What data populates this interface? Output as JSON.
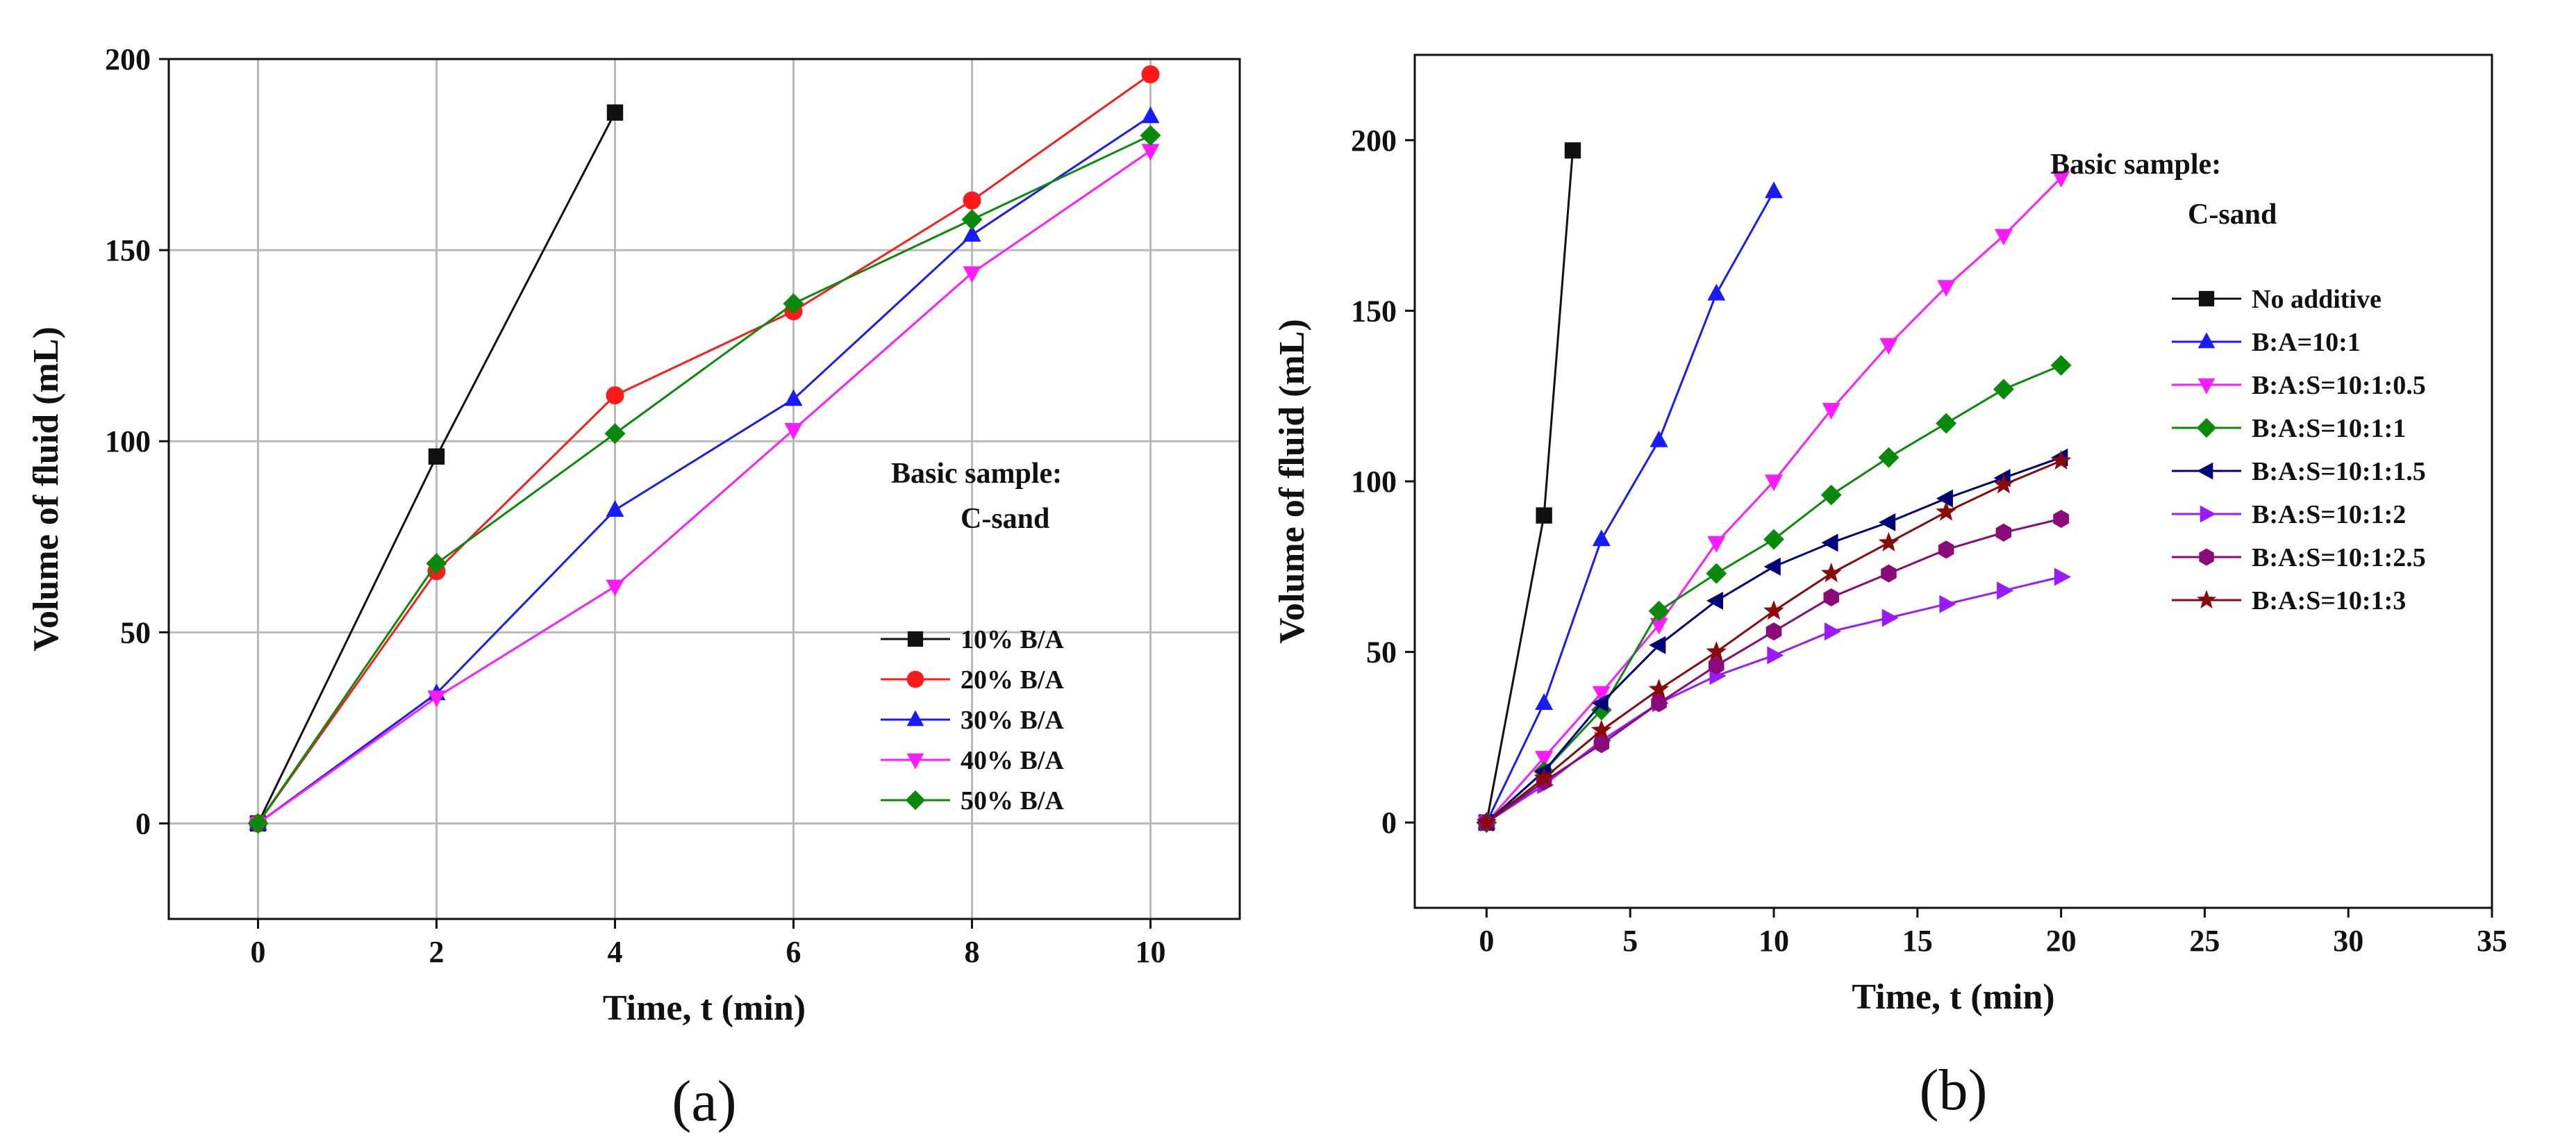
{
  "chart_data": [
    {
      "type": "line",
      "panel_label": "(a)",
      "title": "",
      "xlabel": "Time, t (min)",
      "ylabel": "Volume of fluid (mL)",
      "xlim": [
        -1,
        11
      ],
      "ylim": [
        -25,
        200
      ],
      "xticks": [
        0,
        2,
        4,
        6,
        8,
        10
      ],
      "yticks": [
        0,
        50,
        100,
        150,
        200
      ],
      "grid": true,
      "annotation": [
        "Basic sample:",
        "C-sand"
      ],
      "legend_position": "right",
      "series": [
        {
          "name": "10% B/A",
          "color": "#111111",
          "marker": "square",
          "x": [
            0,
            2,
            4
          ],
          "y": [
            0,
            96,
            186
          ]
        },
        {
          "name": "20% B/A",
          "color": "#ff1a1a",
          "marker": "circle",
          "x": [
            0,
            2,
            4,
            6,
            8,
            10
          ],
          "y": [
            0,
            66,
            112,
            134,
            163,
            196
          ]
        },
        {
          "name": "30% B/A",
          "color": "#1a1aff",
          "marker": "triangle-up",
          "x": [
            0,
            2,
            4,
            6,
            8,
            10
          ],
          "y": [
            0,
            34,
            82,
            111,
            154,
            185
          ]
        },
        {
          "name": "40% B/A",
          "color": "#ff1aff",
          "marker": "triangle-down",
          "x": [
            0,
            2,
            4,
            6,
            8,
            10
          ],
          "y": [
            0,
            33,
            62,
            103,
            144,
            176
          ]
        },
        {
          "name": "50% B/A",
          "color": "#0a8a0a",
          "marker": "diamond",
          "x": [
            0,
            2,
            4,
            6,
            8,
            10
          ],
          "y": [
            0,
            68,
            102,
            136,
            158,
            180
          ]
        }
      ]
    },
    {
      "type": "line",
      "panel_label": "(b)",
      "title": "",
      "xlabel": "Time, t (min)",
      "ylabel": "Volume of fluid (mL)",
      "xlim": [
        -2.5,
        35
      ],
      "ylim": [
        -25,
        225
      ],
      "xticks": [
        0,
        5,
        10,
        15,
        20,
        25,
        30,
        35
      ],
      "yticks": [
        0,
        50,
        100,
        150,
        200
      ],
      "grid": false,
      "annotation": [
        "Basic sample:",
        "C-sand"
      ],
      "legend_position": "right",
      "series": [
        {
          "name": "No additive",
          "color": "#111111",
          "marker": "square",
          "x": [
            0,
            2,
            3
          ],
          "y": [
            0,
            90,
            197
          ]
        },
        {
          "name": "B:A=10:1",
          "color": "#1a1aff",
          "marker": "triangle-up",
          "x": [
            0,
            2,
            4,
            6,
            8,
            10
          ],
          "y": [
            0,
            35,
            83,
            112,
            155,
            185
          ]
        },
        {
          "name": "B:A:S=10:1:0.5",
          "color": "#ff1aff",
          "marker": "triangle-down",
          "x": [
            0,
            2,
            4,
            6,
            8,
            10,
            12,
            14,
            16,
            18,
            20
          ],
          "y": [
            0,
            19,
            38,
            58,
            82,
            100,
            121,
            140,
            157,
            172,
            189
          ]
        },
        {
          "name": "B:A:S=10:1:1",
          "color": "#0a8a0a",
          "marker": "diamond",
          "x": [
            0,
            2,
            4,
            6,
            8,
            10,
            12,
            14,
            16,
            18,
            20
          ],
          "y": [
            0,
            15,
            33,
            62,
            73,
            83,
            96,
            107,
            117,
            127,
            134
          ]
        },
        {
          "name": "B:A:S=10:1:1.5",
          "color": "#00007a",
          "marker": "triangle-left",
          "x": [
            0,
            2,
            4,
            6,
            8,
            10,
            12,
            14,
            16,
            18,
            20
          ],
          "y": [
            0,
            15,
            35,
            52,
            65,
            75,
            82,
            88,
            95,
            101,
            107
          ]
        },
        {
          "name": "B:A:S=10:1:2",
          "color": "#9a1aff",
          "marker": "triangle-right",
          "x": [
            0,
            2,
            4,
            6,
            8,
            10,
            12,
            14,
            16,
            18,
            20
          ],
          "y": [
            0,
            11,
            24,
            35,
            43,
            49,
            56,
            60,
            64,
            68,
            72
          ]
        },
        {
          "name": "B:A:S=10:1:2.5",
          "color": "#8a0a7a",
          "marker": "hexagon",
          "x": [
            0,
            2,
            4,
            6,
            8,
            10,
            12,
            14,
            16,
            18,
            20
          ],
          "y": [
            0,
            12,
            23,
            35,
            46,
            56,
            66,
            73,
            80,
            85,
            89
          ]
        },
        {
          "name": "B:A:S=10:1:3",
          "color": "#8a0a0a",
          "marker": "star",
          "x": [
            0,
            2,
            4,
            6,
            8,
            10,
            12,
            14,
            16,
            18,
            20
          ],
          "y": [
            0,
            13,
            27,
            39,
            50,
            62,
            73,
            82,
            91,
            99,
            106
          ]
        }
      ]
    }
  ]
}
